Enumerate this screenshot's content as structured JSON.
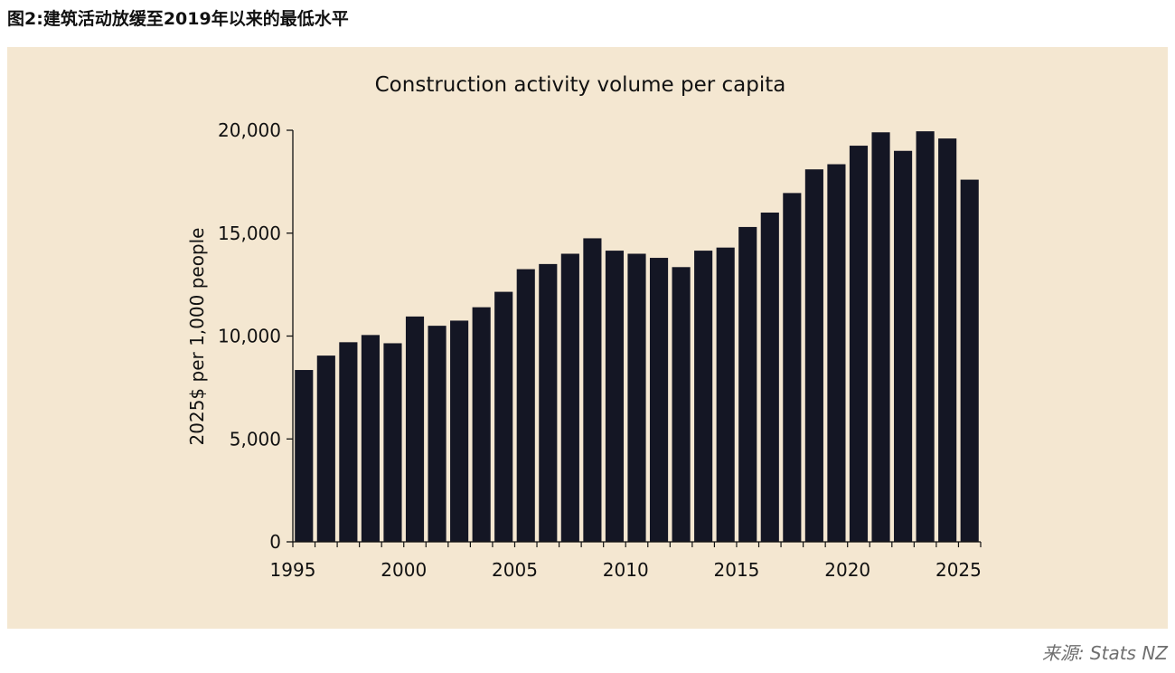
{
  "figure_title": "图2:建筑活动放缓至2019年以来的最低水平",
  "source": "来源: Stats NZ",
  "colors": {
    "panel": "#f4e7d1",
    "bar": "#141624",
    "text": "#111111",
    "source": "#6f6f6f"
  },
  "chart_data": {
    "type": "bar",
    "title": "Construction activity volume per capita",
    "xlabel": "",
    "ylabel": "2025$ per 1,000 people",
    "ylim": [
      0,
      20000
    ],
    "yticks": [
      0,
      5000,
      10000,
      15000,
      20000
    ],
    "ytick_labels": [
      "0",
      "5,000",
      "10,000",
      "15,000",
      "20,000"
    ],
    "xticks": [
      1995,
      2000,
      2005,
      2010,
      2015,
      2020,
      2025
    ],
    "xtick_labels": [
      "1995",
      "2000",
      "2005",
      "2010",
      "2015",
      "2020",
      "2025"
    ],
    "grid": false,
    "categories": [
      1995,
      1996,
      1997,
      1998,
      1999,
      2000,
      2001,
      2002,
      2003,
      2004,
      2005,
      2006,
      2007,
      2008,
      2009,
      2010,
      2011,
      2012,
      2013,
      2014,
      2015,
      2016,
      2017,
      2018,
      2019,
      2020,
      2021,
      2022,
      2023,
      2024,
      2025
    ],
    "values": [
      8350,
      9050,
      9700,
      10050,
      9650,
      10950,
      10500,
      10750,
      11400,
      12150,
      13250,
      13500,
      14000,
      14750,
      14150,
      14000,
      13800,
      13350,
      14150,
      14300,
      15300,
      16000,
      16950,
      18100,
      18350,
      19250,
      19900,
      19000,
      19950,
      19600,
      17600
    ]
  }
}
